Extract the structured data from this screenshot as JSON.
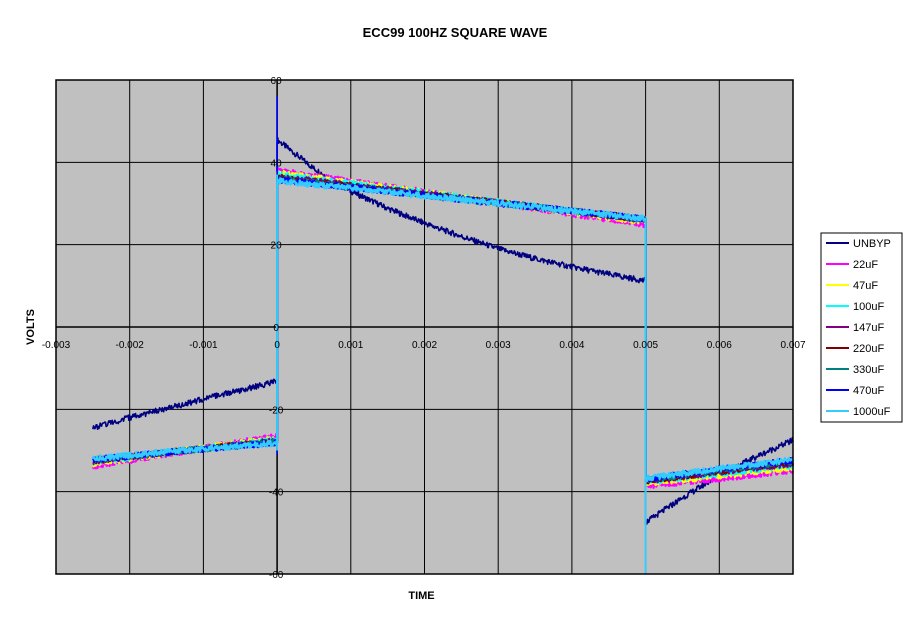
{
  "chart_data": {
    "type": "line",
    "title": "ECC99 100HZ SQUARE WAVE",
    "xlabel": "TIME",
    "ylabel": "VOLTS",
    "xlim": [
      -0.003,
      0.007
    ],
    "ylim": [
      -60,
      60
    ],
    "x_ticks": [
      -0.003,
      -0.002,
      -0.001,
      0,
      0.001,
      0.002,
      0.003,
      0.004,
      0.005,
      0.006,
      0.007
    ],
    "x_tick_labels": [
      "-0.003",
      "-0.002",
      "-0.001",
      "0",
      "0.001",
      "0.002",
      "0.003",
      "0.004",
      "0.005",
      "0.006",
      "0.007"
    ],
    "y_ticks": [
      -60,
      -40,
      -20,
      0,
      20,
      40,
      60
    ],
    "y_tick_labels": [
      "-60",
      "-40",
      "-20",
      "0",
      "20",
      "40",
      "60"
    ],
    "grid": true,
    "plot_background": "#c0c0c0",
    "legend_position": "right",
    "series": [
      {
        "name": "UNBYP",
        "color": "#000080",
        "segments": [
          {
            "x": [
              -0.0025,
              -0.002,
              -0.0015,
              -0.001,
              -0.0005,
              0
            ],
            "y": [
              -24.5,
              -22,
              -19.8,
              -17.5,
              -15.4,
              -13.2
            ]
          },
          {
            "x": [
              0,
              0.0005,
              0.001,
              0.0015,
              0.002,
              0.0025,
              0.003,
              0.0035,
              0.004,
              0.0045,
              0.005
            ],
            "y": [
              45.5,
              38.5,
              33,
              28.8,
              25.2,
              22,
              19,
              16.6,
              14.6,
              12.8,
              11.2
            ]
          },
          {
            "x": [
              0.005,
              0.0055,
              0.006,
              0.0065,
              0.007
            ],
            "y": [
              -47.5,
              -41.5,
              -36,
              -31.5,
              -27.5
            ]
          }
        ]
      },
      {
        "name": "22uF",
        "color": "#ff00ff",
        "segments": [
          {
            "x": [
              -0.0025,
              -0.00125,
              0
            ],
            "y": [
              -33.8,
              -30.2,
              -26.5
            ]
          },
          {
            "x": [
              0,
              0.0025,
              0.005
            ],
            "y": [
              38,
              31.5,
              24.8
            ]
          },
          {
            "x": [
              0.005,
              0.006,
              0.007
            ],
            "y": [
              -38.6,
              -36.8,
              -34.8
            ]
          }
        ]
      },
      {
        "name": "47uF",
        "color": "#ffff00",
        "segments": [
          {
            "x": [
              -0.0025,
              -0.00125,
              0
            ],
            "y": [
              -33.2,
              -30,
              -27
            ]
          },
          {
            "x": [
              0,
              0.0025,
              0.005
            ],
            "y": [
              37.5,
              31.5,
              25.5
            ]
          },
          {
            "x": [
              0.005,
              0.006,
              0.007
            ],
            "y": [
              -38,
              -36.2,
              -34.2
            ]
          }
        ]
      },
      {
        "name": "100uF",
        "color": "#00ffff",
        "segments": [
          {
            "x": [
              -0.0025,
              -0.00125,
              0
            ],
            "y": [
              -32.8,
              -30,
              -27.4
            ]
          },
          {
            "x": [
              0,
              0.0025,
              0.005
            ],
            "y": [
              37,
              31.5,
              26
            ]
          },
          {
            "x": [
              0.005,
              0.006,
              0.007
            ],
            "y": [
              -37.8,
              -35.6,
              -33.6
            ]
          }
        ]
      },
      {
        "name": "147uF",
        "color": "#800080",
        "segments": [
          {
            "x": [
              -0.0025,
              -0.00125,
              0
            ],
            "y": [
              -32.6,
              -30,
              -27.6
            ]
          },
          {
            "x": [
              0,
              0.0025,
              0.005
            ],
            "y": [
              36.5,
              31.3,
              26
            ]
          },
          {
            "x": [
              0.005,
              0.006,
              0.007
            ],
            "y": [
              -37.6,
              -35.2,
              -33.2
            ]
          }
        ]
      },
      {
        "name": "220uF",
        "color": "#800000",
        "segments": [
          {
            "x": [
              -0.0025,
              -0.00125,
              0
            ],
            "y": [
              -32.5,
              -30,
              -27.8
            ]
          },
          {
            "x": [
              0,
              0.0025,
              0.005
            ],
            "y": [
              36.2,
              31.2,
              26.2
            ]
          },
          {
            "x": [
              0.005,
              0.006,
              0.007
            ],
            "y": [
              -37.4,
              -35,
              -32.8
            ]
          }
        ]
      },
      {
        "name": "330uF",
        "color": "#008080",
        "segments": [
          {
            "x": [
              -0.0025,
              -0.00125,
              0
            ],
            "y": [
              -32.3,
              -30,
              -28
            ]
          },
          {
            "x": [
              0,
              0.0025,
              0.005
            ],
            "y": [
              36,
              31,
              26.2
            ]
          },
          {
            "x": [
              0.005,
              0.006,
              0.007
            ],
            "y": [
              -37.2,
              -34.8,
              -32.6
            ]
          }
        ]
      },
      {
        "name": "470uF",
        "color": "#0000ff",
        "segments": [
          {
            "x": [
              -0.0025,
              -0.00125,
              0
            ],
            "y": [
              -32.2,
              -30,
              -28.1
            ]
          },
          {
            "x": [
              0,
              0.0025,
              0.005
            ],
            "y": [
              35.8,
              31,
              26.3
            ]
          },
          {
            "x": [
              0.005,
              0.006,
              0.007
            ],
            "y": [
              -37,
              -34.6,
              -32.4
            ]
          }
        ]
      },
      {
        "name": "1000uF",
        "color": "#33ccff",
        "segments": [
          {
            "x": [
              -0.0025,
              -0.00125,
              0
            ],
            "y": [
              -32,
              -29.9,
              -28.2
            ]
          },
          {
            "x": [
              0,
              0.0025,
              0.005
            ],
            "y": [
              35.5,
              31,
              26.3
            ]
          },
          {
            "x": [
              0.005,
              0.006,
              0.007
            ],
            "y": [
              -36.8,
              -34.4,
              -32.2
            ]
          }
        ]
      }
    ]
  }
}
